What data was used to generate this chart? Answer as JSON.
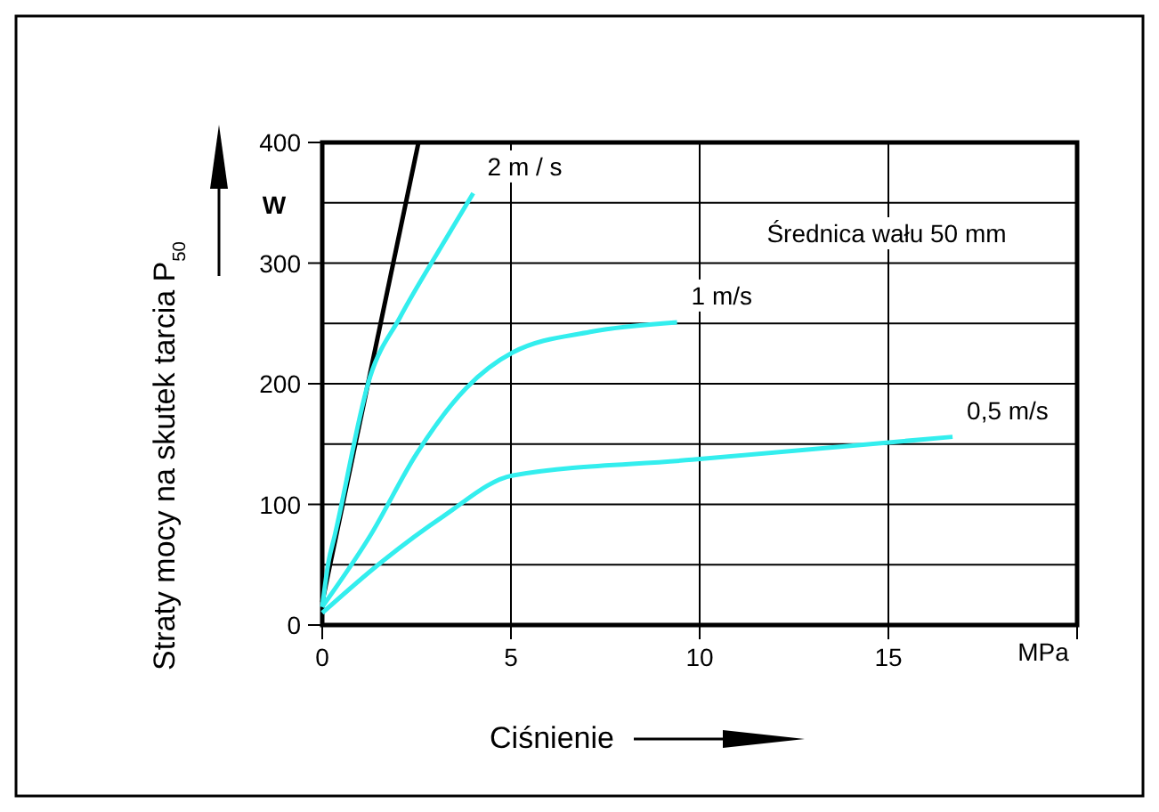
{
  "chart_data": {
    "type": "line",
    "xlabel": "Ciśnienie",
    "ylabel": "Straty mocy na skutek tarcia P$_{50}$",
    "annotations": [
      "Średnica wału 50 mm",
      "W",
      "MPa"
    ],
    "xlim": [
      0,
      20
    ],
    "ylim": [
      0,
      400
    ],
    "xticks": [
      0,
      5,
      10,
      15,
      {
        "value": 20,
        "label": null
      }
    ],
    "yticks": [
      0,
      {
        "value": 50,
        "label": null
      },
      100,
      {
        "value": 150,
        "label": null
      },
      200,
      {
        "value": 250,
        "label": null
      },
      300,
      {
        "value": 350,
        "label": null
      },
      400
    ],
    "grid": true,
    "marker": "none",
    "line_style": "solid",
    "series": [
      {
        "color": "#000000",
        "x": [
          0,
          2.55
        ],
        "values": [
          19,
          400
        ]
      },
      {
        "name": "2 m / s",
        "color": "#33eeee",
        "x": [
          0,
          0.17,
          0.33,
          1.27,
          2.06,
          3.16,
          4.0
        ],
        "values": [
          15,
          53,
          74,
          206,
          255,
          314,
          358
        ]
      },
      {
        "name": "1 m/s",
        "color": "#33eeee",
        "x": [
          0,
          1.27,
          2.5,
          3.8,
          5.05,
          7.1,
          9.4
        ],
        "values": [
          15,
          74,
          142,
          196,
          226,
          243,
          251
        ]
      },
      {
        "name": "0,5 m/s",
        "color": "#33eeee",
        "x": [
          0,
          1.6,
          3.2,
          5.05,
          9.8,
          16.7
        ],
        "values": [
          10,
          53,
          90,
          124,
          137,
          156
        ]
      }
    ]
  }
}
